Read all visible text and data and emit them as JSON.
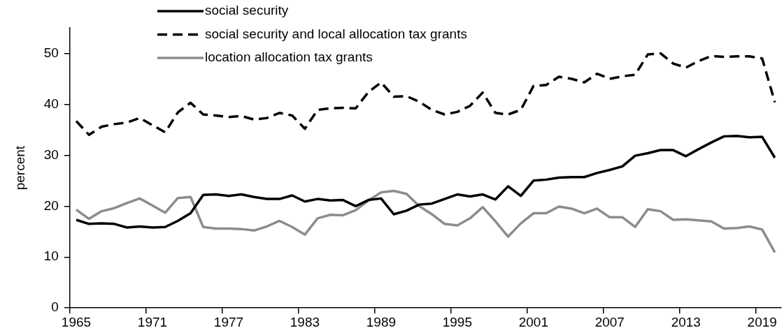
{
  "chart_data": {
    "type": "line",
    "ylabel": "percent",
    "categories": [
      "1965",
      null,
      null,
      null,
      null,
      null,
      "1971",
      null,
      null,
      null,
      null,
      null,
      "1977",
      null,
      null,
      null,
      null,
      null,
      "1983",
      null,
      null,
      null,
      null,
      null,
      "1989",
      null,
      null,
      null,
      null,
      null,
      "1995",
      null,
      null,
      null,
      null,
      null,
      "2001",
      null,
      null,
      null,
      null,
      null,
      "2007",
      null,
      null,
      null,
      null,
      null,
      "2013",
      null,
      null,
      null,
      null,
      null,
      "2019",
      null
    ],
    "ylim": [
      0,
      55
    ],
    "yticks": [
      0,
      10,
      20,
      30,
      40,
      50
    ],
    "grid": false,
    "legend": "top",
    "marker": "none",
    "series": [
      {
        "name": "social security",
        "color": "#000000",
        "line_style": "solid",
        "values": [
          17.3,
          16.5,
          16.6,
          16.5,
          15.8,
          16.0,
          15.8,
          15.9,
          17.1,
          18.6,
          22.2,
          22.3,
          22.0,
          22.3,
          21.8,
          21.4,
          21.4,
          22.1,
          20.9,
          21.4,
          21.1,
          21.2,
          20.0,
          21.2,
          21.5,
          18.4,
          19.1,
          20.3,
          20.5,
          21.4,
          22.3,
          21.9,
          22.3,
          21.3,
          23.9,
          22.0,
          25.0,
          25.2,
          25.6,
          25.7,
          25.7,
          26.5,
          27.1,
          27.8,
          29.9,
          30.4,
          31.0,
          31.0,
          29.8,
          31.2,
          32.5,
          33.7,
          33.8,
          33.5,
          33.6,
          29.5
        ]
      },
      {
        "name": "social security and local allocation tax grants",
        "color": "#000000",
        "line_style": "dashed",
        "values": [
          36.7,
          34.0,
          35.6,
          36.1,
          36.4,
          37.3,
          35.9,
          34.5,
          38.4,
          40.3,
          38.0,
          37.8,
          37.5,
          37.7,
          37.0,
          37.3,
          38.3,
          37.8,
          35.2,
          38.9,
          39.2,
          39.3,
          39.2,
          42.4,
          44.3,
          41.5,
          41.6,
          40.5,
          38.9,
          38.0,
          38.5,
          39.7,
          42.3,
          38.3,
          38.0,
          38.9,
          43.6,
          43.8,
          45.4,
          45.0,
          44.3,
          46.0,
          45.0,
          45.5,
          45.8,
          49.8,
          50.0,
          48.0,
          47.2,
          48.5,
          49.5,
          49.3,
          49.4,
          49.4,
          49.0,
          40.4
        ]
      },
      {
        "name": "location allocation tax grants",
        "color": "#8c8c8c",
        "line_style": "solid",
        "values": [
          19.3,
          17.5,
          19.0,
          19.6,
          20.6,
          21.5,
          20.1,
          18.7,
          21.6,
          21.8,
          15.9,
          15.6,
          15.6,
          15.5,
          15.2,
          16.0,
          17.1,
          15.9,
          14.4,
          17.6,
          18.3,
          18.2,
          19.2,
          21.1,
          22.7,
          23.0,
          22.4,
          20.0,
          18.4,
          16.5,
          16.2,
          17.6,
          19.8,
          17.0,
          14.0,
          16.6,
          18.6,
          18.6,
          19.9,
          19.5,
          18.6,
          19.5,
          17.8,
          17.8,
          15.9,
          19.4,
          19.0,
          17.3,
          17.4,
          17.2,
          17.0,
          15.6,
          15.7,
          16.0,
          15.4,
          10.9
        ]
      }
    ]
  }
}
